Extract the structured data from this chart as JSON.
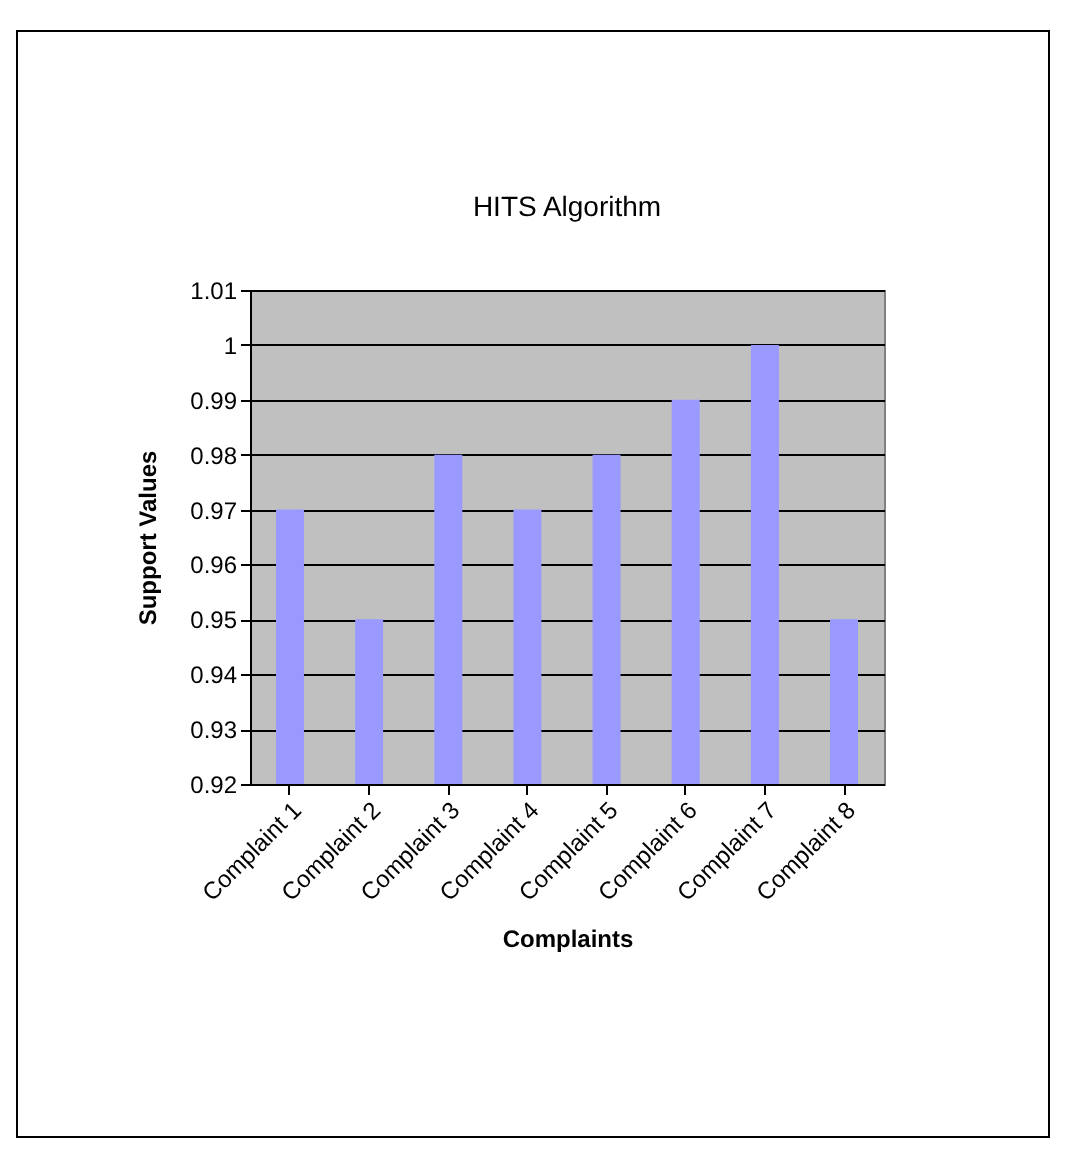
{
  "chart_data": {
    "type": "bar",
    "title": "HITS Algorithm",
    "xlabel": "Complaints",
    "ylabel": "Support Values",
    "categories": [
      "Complaint 1",
      "Complaint 2",
      "Complaint 3",
      "Complaint 4",
      "Complaint 5",
      "Complaint 6",
      "Complaint 7",
      "Complaint 8"
    ],
    "values": [
      0.97,
      0.95,
      0.98,
      0.97,
      0.98,
      0.99,
      1,
      0.95
    ],
    "color": "#9999ff",
    "ylim": [
      0.92,
      1.01
    ],
    "yticks": [
      0.92,
      0.93,
      0.94,
      0.95,
      0.96,
      0.97,
      0.98,
      0.99,
      1,
      1.01
    ],
    "grid": "y"
  }
}
